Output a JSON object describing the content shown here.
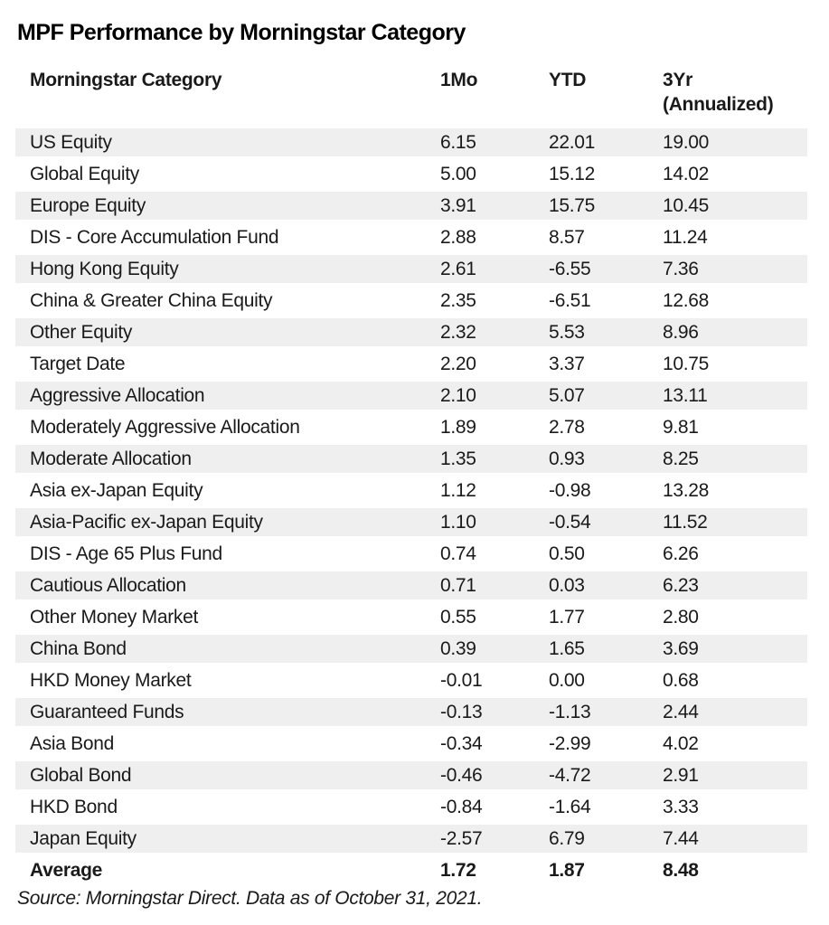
{
  "title": "MPF Performance by Morningstar Category",
  "table": {
    "header": {
      "category": "Morningstar Category",
      "one_mo": "1Mo",
      "ytd": "YTD",
      "three_yr": "3Yr",
      "three_yr_sub": "(Annualized)"
    },
    "rows": [
      {
        "category": "US Equity",
        "one_mo": "6.15",
        "ytd": "22.01",
        "three_yr": "19.00"
      },
      {
        "category": "Global Equity",
        "one_mo": "5.00",
        "ytd": "15.12",
        "three_yr": "14.02"
      },
      {
        "category": "Europe Equity",
        "one_mo": "3.91",
        "ytd": "15.75",
        "three_yr": "10.45"
      },
      {
        "category": "DIS - Core Accumulation Fund",
        "one_mo": "2.88",
        "ytd": "8.57",
        "three_yr": "11.24"
      },
      {
        "category": "Hong Kong Equity",
        "one_mo": "2.61",
        "ytd": "-6.55",
        "three_yr": "7.36"
      },
      {
        "category": "China & Greater China Equity",
        "one_mo": "2.35",
        "ytd": "-6.51",
        "three_yr": "12.68"
      },
      {
        "category": "Other Equity",
        "one_mo": "2.32",
        "ytd": "5.53",
        "three_yr": "8.96"
      },
      {
        "category": "Target Date",
        "one_mo": "2.20",
        "ytd": "3.37",
        "three_yr": "10.75"
      },
      {
        "category": "Aggressive Allocation",
        "one_mo": "2.10",
        "ytd": "5.07",
        "three_yr": "13.11"
      },
      {
        "category": "Moderately Aggressive Allocation",
        "one_mo": "1.89",
        "ytd": "2.78",
        "three_yr": "9.81"
      },
      {
        "category": "Moderate Allocation",
        "one_mo": "1.35",
        "ytd": "0.93",
        "three_yr": "8.25"
      },
      {
        "category": "Asia ex-Japan Equity",
        "one_mo": "1.12",
        "ytd": "-0.98",
        "three_yr": "13.28"
      },
      {
        "category": "Asia-Pacific ex-Japan Equity",
        "one_mo": "1.10",
        "ytd": "-0.54",
        "three_yr": "11.52"
      },
      {
        "category": "DIS - Age 65 Plus Fund",
        "one_mo": "0.74",
        "ytd": "0.50",
        "three_yr": "6.26"
      },
      {
        "category": "Cautious Allocation",
        "one_mo": "0.71",
        "ytd": "0.03",
        "three_yr": "6.23"
      },
      {
        "category": "Other Money Market",
        "one_mo": "0.55",
        "ytd": "1.77",
        "three_yr": "2.80"
      },
      {
        "category": "China Bond",
        "one_mo": "0.39",
        "ytd": "1.65",
        "three_yr": "3.69"
      },
      {
        "category": "HKD Money Market",
        "one_mo": "-0.01",
        "ytd": "0.00",
        "three_yr": "0.68"
      },
      {
        "category": "Guaranteed Funds",
        "one_mo": "-0.13",
        "ytd": "-1.13",
        "three_yr": "2.44"
      },
      {
        "category": "Asia Bond",
        "one_mo": "-0.34",
        "ytd": "-2.99",
        "three_yr": "4.02"
      },
      {
        "category": "Global Bond",
        "one_mo": "-0.46",
        "ytd": "-4.72",
        "three_yr": "2.91"
      },
      {
        "category": "HKD Bond",
        "one_mo": "-0.84",
        "ytd": "-1.64",
        "three_yr": "3.33"
      },
      {
        "category": "Japan Equity",
        "one_mo": "-2.57",
        "ytd": "6.79",
        "three_yr": "7.44"
      }
    ],
    "average_row": {
      "category": "Average",
      "one_mo": "1.72",
      "ytd": "1.87",
      "three_yr": "8.48"
    }
  },
  "source": "Source: Morningstar Direct. Data as of October 31, 2021.",
  "colors": {
    "stripe": "#efefef",
    "text": "#1a1a1a",
    "title": "#000000",
    "background": "#ffffff"
  },
  "chart_data": {
    "type": "table",
    "title": "MPF Performance by Morningstar Category",
    "columns": [
      "Morningstar Category",
      "1Mo",
      "YTD",
      "3Yr (Annualized)"
    ],
    "rows": [
      [
        "US Equity",
        6.15,
        22.01,
        19.0
      ],
      [
        "Global Equity",
        5.0,
        15.12,
        14.02
      ],
      [
        "Europe Equity",
        3.91,
        15.75,
        10.45
      ],
      [
        "DIS - Core Accumulation Fund",
        2.88,
        8.57,
        11.24
      ],
      [
        "Hong Kong Equity",
        2.61,
        -6.55,
        7.36
      ],
      [
        "China & Greater China Equity",
        2.35,
        -6.51,
        12.68
      ],
      [
        "Other Equity",
        2.32,
        5.53,
        8.96
      ],
      [
        "Target Date",
        2.2,
        3.37,
        10.75
      ],
      [
        "Aggressive Allocation",
        2.1,
        5.07,
        13.11
      ],
      [
        "Moderately Aggressive Allocation",
        1.89,
        2.78,
        9.81
      ],
      [
        "Moderate Allocation",
        1.35,
        0.93,
        8.25
      ],
      [
        "Asia ex-Japan Equity",
        1.12,
        -0.98,
        13.28
      ],
      [
        "Asia-Pacific ex-Japan Equity",
        1.1,
        -0.54,
        11.52
      ],
      [
        "DIS - Age 65 Plus Fund",
        0.74,
        0.5,
        6.26
      ],
      [
        "Cautious Allocation",
        0.71,
        0.03,
        6.23
      ],
      [
        "Other Money Market",
        0.55,
        1.77,
        2.8
      ],
      [
        "China Bond",
        0.39,
        1.65,
        3.69
      ],
      [
        "HKD Money Market",
        -0.01,
        0.0,
        0.68
      ],
      [
        "Guaranteed Funds",
        -0.13,
        -1.13,
        2.44
      ],
      [
        "Asia Bond",
        -0.34,
        -2.99,
        4.02
      ],
      [
        "Global Bond",
        -0.46,
        -4.72,
        2.91
      ],
      [
        "HKD Bond",
        -0.84,
        -1.64,
        3.33
      ],
      [
        "Japan Equity",
        -2.57,
        6.79,
        7.44
      ]
    ],
    "average": [
      "Average",
      1.72,
      1.87,
      8.48
    ],
    "source": "Source: Morningstar Direct. Data as of October 31, 2021.",
    "layout": {
      "row_striping": "odd-rows-gray",
      "stripe_color": "#efefef",
      "value_alignment": "left",
      "average_row_bold": true
    }
  }
}
